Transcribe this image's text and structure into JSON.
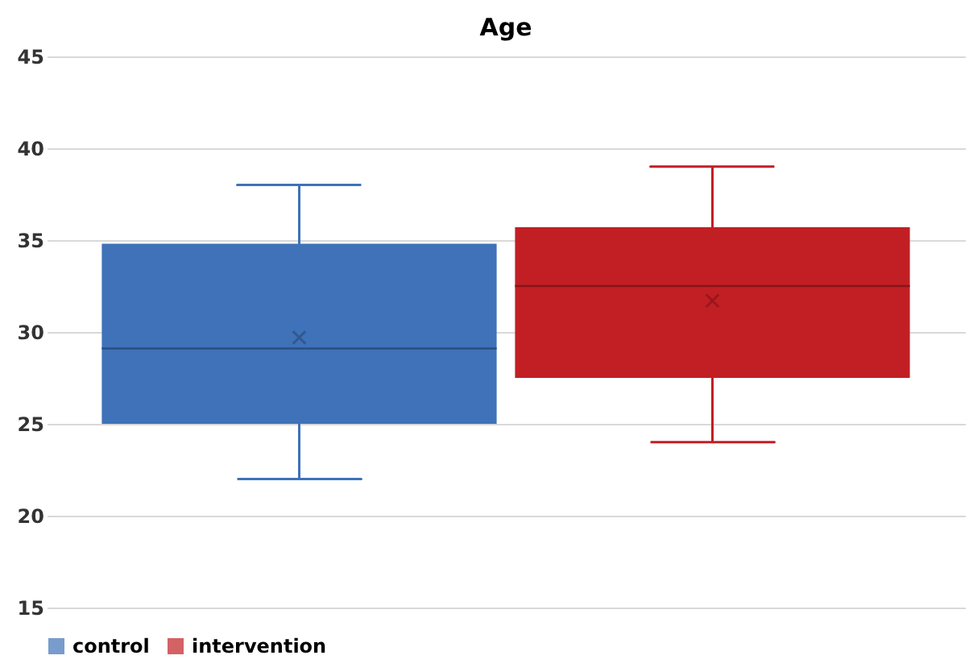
{
  "chart_data": {
    "type": "box",
    "title": "Age",
    "categories": [
      null
    ],
    "series": [
      {
        "name": "control",
        "color": "#3f72b8",
        "boxes": [
          {
            "low": 22,
            "q1": 25,
            "median": 29.1,
            "q3": 34.8,
            "high": 38,
            "mean": 29.7
          }
        ]
      },
      {
        "name": "intervention",
        "color": "#c11f24",
        "boxes": [
          {
            "low": 24,
            "q1": 27.5,
            "median": 32.5,
            "q3": 35.7,
            "high": 39,
            "mean": 31.7
          }
        ]
      }
    ],
    "ylim": [
      15,
      45
    ],
    "yticks": [
      15,
      20,
      25,
      30,
      35,
      40,
      45
    ],
    "grid": "y",
    "legend": "bottom",
    "tick_labels": "y"
  }
}
